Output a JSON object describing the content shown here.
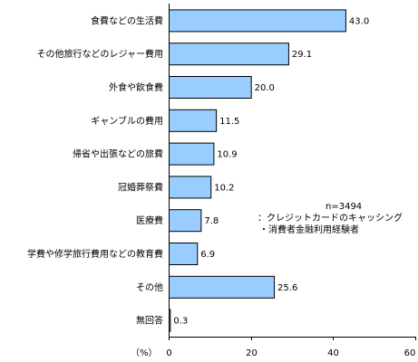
{
  "chart_data": {
    "type": "bar",
    "orientation": "horizontal",
    "categories": [
      "食費などの生活費",
      "その他旅行などのレジャー費用",
      "外食や飲食費",
      "ギャンブルの費用",
      "帰省や出張などの旅費",
      "冠婚葬祭費",
      "医療費",
      "学費や修学旅行費用などの教育費",
      "その他",
      "無回答"
    ],
    "values": [
      43.0,
      29.1,
      20.0,
      11.5,
      10.9,
      10.2,
      7.8,
      6.9,
      25.6,
      0.3
    ],
    "value_labels": [
      "43.0",
      "29.1",
      "20.0",
      "11.5",
      "10.9",
      "10.2",
      "7.8",
      "6.9",
      "25.6",
      "0.3"
    ],
    "xlim": [
      0,
      60
    ],
    "xticks": [
      "0",
      "20",
      "40",
      "60"
    ],
    "xunit": "（%）",
    "grid": false,
    "bar_color": "#99ccff",
    "annotation": {
      "n": "n=3494",
      "line1": "：クレジットカードのキャッシング",
      "line2": "・消費者金融利用経験者"
    }
  }
}
